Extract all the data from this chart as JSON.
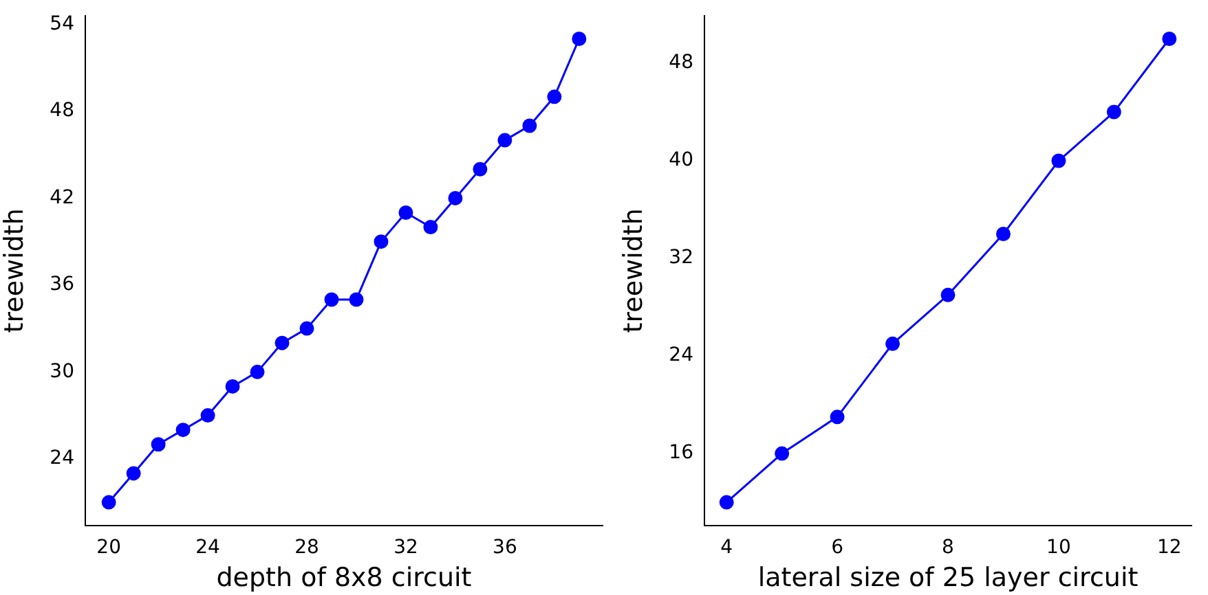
{
  "chart_data": [
    {
      "type": "line",
      "xlabel": "depth of 8x8 circuit",
      "ylabel": "treewidth",
      "x": [
        20,
        21,
        22,
        23,
        24,
        25,
        26,
        27,
        28,
        29,
        30,
        31,
        32,
        33,
        34,
        35,
        36,
        37,
        38,
        39
      ],
      "series": [
        {
          "color": "#0000ff",
          "values": [
            21,
            23,
            25,
            26,
            27,
            29,
            30,
            32,
            33,
            35,
            35,
            39,
            41,
            40,
            42,
            44,
            46,
            47,
            49,
            53
          ]
        }
      ],
      "xlim": [
        19.05,
        39.95
      ],
      "ylim": [
        19.4,
        54.6
      ],
      "xticks": [
        20,
        24,
        28,
        32,
        36
      ],
      "yticks": [
        24,
        30,
        36,
        42,
        48,
        54
      ],
      "marker": "circle",
      "line_style": "solid",
      "grid": false
    },
    {
      "type": "line",
      "xlabel": "lateral size of 25 layer circuit",
      "ylabel": "treewidth",
      "x": [
        4,
        5,
        6,
        7,
        8,
        9,
        10,
        11,
        12
      ],
      "series": [
        {
          "color": "#0000ff",
          "values": [
            12,
            16,
            19,
            25,
            29,
            34,
            40,
            44,
            50
          ]
        }
      ],
      "xlim": [
        3.6,
        12.4
      ],
      "ylim": [
        10.1,
        51.9
      ],
      "xticks": [
        4,
        6,
        8,
        10,
        12
      ],
      "yticks": [
        16,
        24,
        32,
        40,
        48
      ],
      "marker": "circle",
      "line_style": "solid",
      "grid": false
    }
  ]
}
